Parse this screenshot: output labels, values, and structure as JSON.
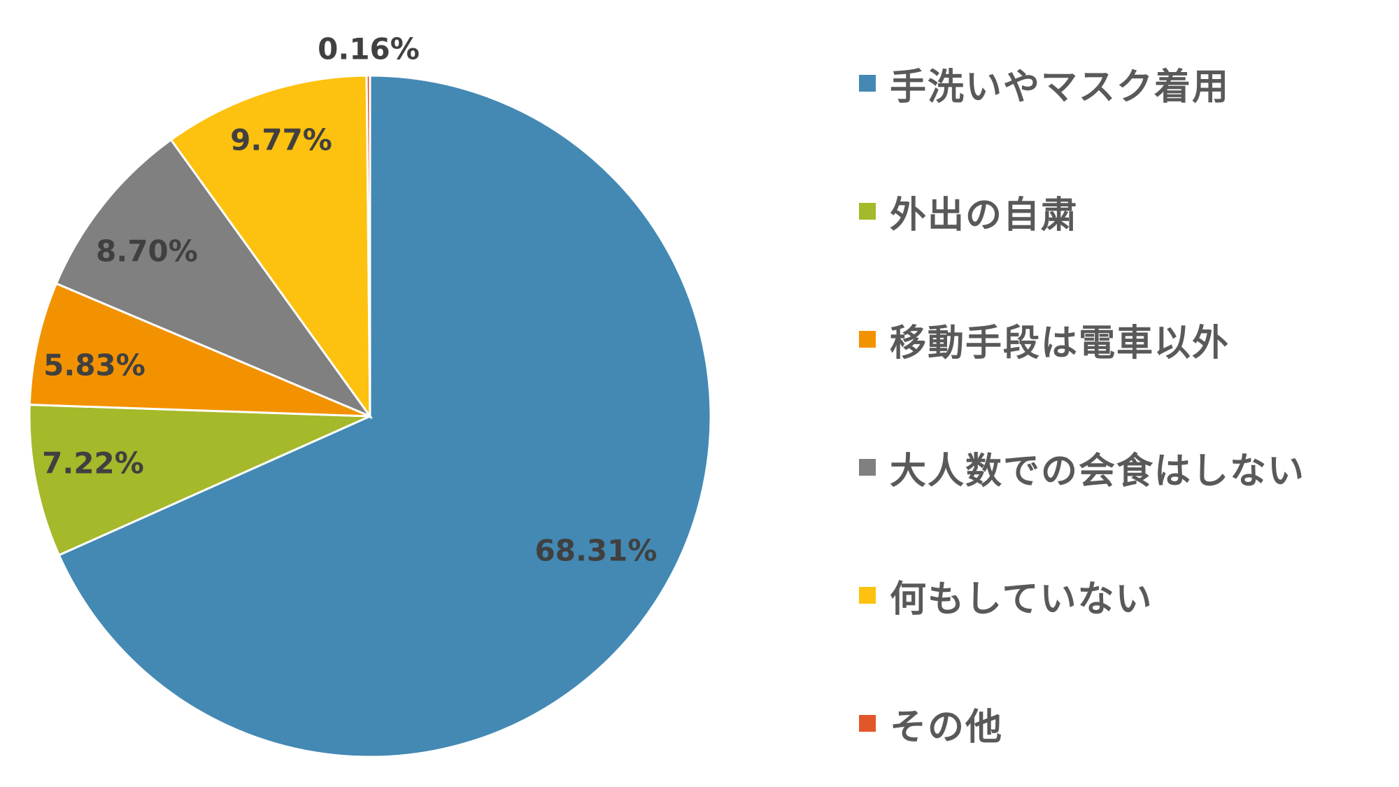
{
  "chart_data": {
    "type": "pie",
    "title": "",
    "legend_position": "right",
    "slices": [
      {
        "label": "手洗いやマスク着用",
        "value": 68.31,
        "display": "68.31%",
        "color": "#4389B4"
      },
      {
        "label": "外出の自粛",
        "value": 7.22,
        "display": "7.22%",
        "color": "#A5B92A"
      },
      {
        "label": "移動手段は電車以外",
        "value": 5.83,
        "display": "5.83%",
        "color": "#F39200"
      },
      {
        "label": "大人数での会食はしない",
        "value": 8.7,
        "display": "8.70%",
        "color": "#808080"
      },
      {
        "label": "何もしていない",
        "value": 9.77,
        "display": "9.77%",
        "color": "#FDC10F"
      },
      {
        "label": "その他",
        "value": 0.16,
        "display": "0.16%",
        "color": "#E2572A"
      }
    ]
  },
  "legend": {
    "items": [
      {
        "label": "手洗いやマスク着用",
        "color": "#4389B4"
      },
      {
        "label": "外出の自粛",
        "color": "#A5B92A"
      },
      {
        "label": "移動手段は電車以外",
        "color": "#F39200"
      },
      {
        "label": "大人数での会食はしない",
        "color": "#808080"
      },
      {
        "label": "何もしていない",
        "color": "#FDC10F"
      },
      {
        "label": "その他",
        "color": "#E2572A"
      }
    ]
  }
}
